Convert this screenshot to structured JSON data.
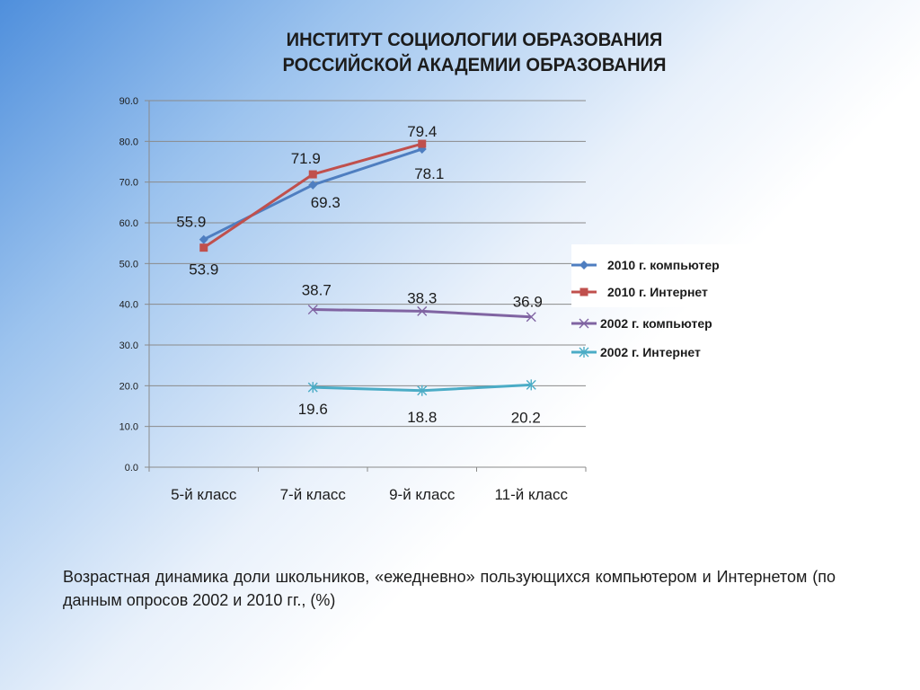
{
  "title": {
    "line1": "ИНСТИТУТ СОЦИОЛОГИИ ОБРАЗОВАНИЯ",
    "line2": "РОССИЙСКОЙ АКАДЕМИИ ОБРАЗОВАНИЯ"
  },
  "caption": "Возрастная динамика доли школьников, «ежедневно» пользующихся компьютером и Интернетом (по данным опросов 2002 и 2010 гг., (%)",
  "chart_data": {
    "type": "line",
    "categories": [
      "5-й класс",
      "7-й класс",
      "9-й класс",
      "11-й класс"
    ],
    "ylim": [
      0,
      90
    ],
    "yticks": [
      "0.0",
      "10.0",
      "20.0",
      "30.0",
      "40.0",
      "50.0",
      "60.0",
      "70.0",
      "80.0",
      "90.0"
    ],
    "grid": true,
    "legend_position": "right",
    "series": [
      {
        "name": "2010 г. компьютер",
        "values": [
          55.9,
          69.3,
          78.1,
          null
        ],
        "labels": [
          "55.9",
          "69.3",
          "78.1",
          ""
        ],
        "color": "#4f7ec0",
        "marker": "diamond"
      },
      {
        "name": "2010 г. Интернет",
        "values": [
          53.9,
          71.9,
          79.4,
          null
        ],
        "labels": [
          "53.9",
          "71.9",
          "79.4",
          ""
        ],
        "color": "#c0504d",
        "marker": "square"
      },
      {
        "name": "2002 г. компьютер",
        "values": [
          null,
          38.7,
          38.3,
          36.9
        ],
        "labels": [
          "",
          "38.7",
          "38.3",
          "36.9"
        ],
        "color": "#8064a2",
        "marker": "x"
      },
      {
        "name": "2002 г. Интернет",
        "values": [
          null,
          19.6,
          18.8,
          20.2
        ],
        "labels": [
          "",
          "19.6",
          "18.8",
          "20.2"
        ],
        "color": "#4bacc6",
        "marker": "star"
      }
    ]
  }
}
